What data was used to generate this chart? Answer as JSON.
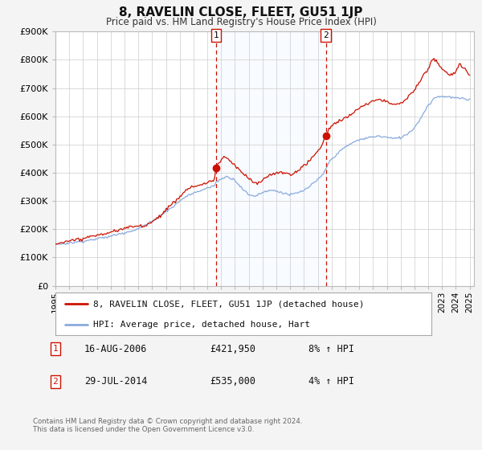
{
  "title": "8, RAVELIN CLOSE, FLEET, GU51 1JP",
  "subtitle": "Price paid vs. HM Land Registry's House Price Index (HPI)",
  "ylim": [
    0,
    900000
  ],
  "ytick_values": [
    0,
    100000,
    200000,
    300000,
    400000,
    500000,
    600000,
    700000,
    800000,
    900000
  ],
  "ytick_labels": [
    "£0",
    "£100K",
    "£200K",
    "£300K",
    "£400K",
    "£500K",
    "£600K",
    "£700K",
    "£800K",
    "£900K"
  ],
  "xlim_start": 1995.0,
  "xlim_end": 2025.3,
  "xtick_years": [
    1995,
    1996,
    1997,
    1998,
    1999,
    2000,
    2001,
    2002,
    2003,
    2004,
    2005,
    2006,
    2007,
    2008,
    2009,
    2010,
    2011,
    2012,
    2013,
    2014,
    2015,
    2016,
    2017,
    2018,
    2019,
    2020,
    2021,
    2022,
    2023,
    2024,
    2025
  ],
  "hpi_color": "#88aadd",
  "price_color": "#cc1100",
  "marker_color": "#cc1100",
  "vline_color": "#cc1100",
  "shade_color": "#ddeeff",
  "event1_x": 2006.625,
  "event2_x": 2014.58,
  "legend_label_price": "8, RAVELIN CLOSE, FLEET, GU51 1JP (detached house)",
  "legend_label_hpi": "HPI: Average price, detached house, Hart",
  "note1_label": "1",
  "note1_date": "16-AUG-2006",
  "note1_price": "£421,950",
  "note1_hpi": "8% ↑ HPI",
  "note2_label": "2",
  "note2_date": "29-JUL-2014",
  "note2_price": "£535,000",
  "note2_hpi": "4% ↑ HPI",
  "footer": "Contains HM Land Registry data © Crown copyright and database right 2024.\nThis data is licensed under the Open Government Licence v3.0.",
  "background_color": "#f4f4f4",
  "plot_bg_color": "#ffffff",
  "grid_color": "#cccccc",
  "hpi_anchors": [
    [
      1995.0,
      147000
    ],
    [
      1995.5,
      149000
    ],
    [
      1996.0,
      152000
    ],
    [
      1996.5,
      155000
    ],
    [
      1997.0,
      158000
    ],
    [
      1997.5,
      163000
    ],
    [
      1998.0,
      168000
    ],
    [
      1998.5,
      172000
    ],
    [
      1999.0,
      177000
    ],
    [
      1999.5,
      183000
    ],
    [
      2000.0,
      189000
    ],
    [
      2000.5,
      196000
    ],
    [
      2001.0,
      204000
    ],
    [
      2001.5,
      215000
    ],
    [
      2002.0,
      228000
    ],
    [
      2002.5,
      245000
    ],
    [
      2003.0,
      262000
    ],
    [
      2003.5,
      278000
    ],
    [
      2004.0,
      298000
    ],
    [
      2004.5,
      315000
    ],
    [
      2005.0,
      325000
    ],
    [
      2005.5,
      333000
    ],
    [
      2006.0,
      342000
    ],
    [
      2006.5,
      352000
    ],
    [
      2006.625,
      365000
    ],
    [
      2007.0,
      378000
    ],
    [
      2007.5,
      388000
    ],
    [
      2008.0,
      375000
    ],
    [
      2008.5,
      345000
    ],
    [
      2009.0,
      320000
    ],
    [
      2009.5,
      318000
    ],
    [
      2010.0,
      330000
    ],
    [
      2010.5,
      338000
    ],
    [
      2011.0,
      335000
    ],
    [
      2011.5,
      328000
    ],
    [
      2012.0,
      322000
    ],
    [
      2012.5,
      328000
    ],
    [
      2013.0,
      338000
    ],
    [
      2013.5,
      355000
    ],
    [
      2014.0,
      375000
    ],
    [
      2014.4,
      395000
    ],
    [
      2014.58,
      415000
    ],
    [
      2015.0,
      448000
    ],
    [
      2015.5,
      470000
    ],
    [
      2016.0,
      490000
    ],
    [
      2016.5,
      505000
    ],
    [
      2017.0,
      515000
    ],
    [
      2017.5,
      520000
    ],
    [
      2018.0,
      525000
    ],
    [
      2018.5,
      528000
    ],
    [
      2019.0,
      525000
    ],
    [
      2019.5,
      520000
    ],
    [
      2020.0,
      522000
    ],
    [
      2020.5,
      535000
    ],
    [
      2021.0,
      558000
    ],
    [
      2021.5,
      595000
    ],
    [
      2022.0,
      638000
    ],
    [
      2022.5,
      665000
    ],
    [
      2023.0,
      670000
    ],
    [
      2023.5,
      668000
    ],
    [
      2024.0,
      665000
    ],
    [
      2024.5,
      660000
    ],
    [
      2025.0,
      658000
    ]
  ],
  "price_anchors": [
    [
      1995.0,
      152000
    ],
    [
      1995.5,
      155000
    ],
    [
      1996.0,
      159000
    ],
    [
      1996.5,
      164000
    ],
    [
      1997.0,
      170000
    ],
    [
      1997.5,
      176000
    ],
    [
      1998.0,
      181000
    ],
    [
      1998.5,
      186000
    ],
    [
      1999.0,
      192000
    ],
    [
      1999.5,
      198000
    ],
    [
      2000.0,
      205000
    ],
    [
      2000.5,
      213000
    ],
    [
      2001.0,
      215000
    ],
    [
      2001.5,
      218000
    ],
    [
      2002.0,
      230000
    ],
    [
      2002.5,
      250000
    ],
    [
      2003.0,
      273000
    ],
    [
      2003.5,
      295000
    ],
    [
      2004.0,
      320000
    ],
    [
      2004.5,
      348000
    ],
    [
      2005.0,
      358000
    ],
    [
      2005.5,
      362000
    ],
    [
      2006.0,
      368000
    ],
    [
      2006.5,
      380000
    ],
    [
      2006.625,
      421950
    ],
    [
      2006.8,
      435000
    ],
    [
      2007.0,
      448000
    ],
    [
      2007.2,
      460000
    ],
    [
      2007.4,
      455000
    ],
    [
      2007.6,
      448000
    ],
    [
      2008.0,
      430000
    ],
    [
      2008.5,
      405000
    ],
    [
      2009.0,
      385000
    ],
    [
      2009.3,
      372000
    ],
    [
      2009.6,
      368000
    ],
    [
      2010.0,
      378000
    ],
    [
      2010.3,
      390000
    ],
    [
      2010.6,
      400000
    ],
    [
      2011.0,
      405000
    ],
    [
      2011.3,
      408000
    ],
    [
      2011.6,
      402000
    ],
    [
      2012.0,
      398000
    ],
    [
      2012.3,
      405000
    ],
    [
      2012.6,
      415000
    ],
    [
      2013.0,
      428000
    ],
    [
      2013.3,
      442000
    ],
    [
      2013.6,
      458000
    ],
    [
      2014.0,
      478000
    ],
    [
      2014.3,
      498000
    ],
    [
      2014.58,
      535000
    ],
    [
      2014.8,
      555000
    ],
    [
      2015.0,
      568000
    ],
    [
      2015.3,
      578000
    ],
    [
      2015.6,
      585000
    ],
    [
      2016.0,
      592000
    ],
    [
      2016.3,
      602000
    ],
    [
      2016.6,
      615000
    ],
    [
      2017.0,
      625000
    ],
    [
      2017.3,
      635000
    ],
    [
      2017.6,
      642000
    ],
    [
      2018.0,
      650000
    ],
    [
      2018.3,
      658000
    ],
    [
      2018.6,
      655000
    ],
    [
      2019.0,
      648000
    ],
    [
      2019.3,
      642000
    ],
    [
      2019.6,
      640000
    ],
    [
      2020.0,
      645000
    ],
    [
      2020.3,
      655000
    ],
    [
      2020.6,
      670000
    ],
    [
      2021.0,
      688000
    ],
    [
      2021.3,
      710000
    ],
    [
      2021.6,
      738000
    ],
    [
      2022.0,
      762000
    ],
    [
      2022.2,
      785000
    ],
    [
      2022.4,
      800000
    ],
    [
      2022.6,
      790000
    ],
    [
      2022.8,
      778000
    ],
    [
      2023.0,
      768000
    ],
    [
      2023.2,
      758000
    ],
    [
      2023.4,
      748000
    ],
    [
      2023.6,
      742000
    ],
    [
      2023.8,
      748000
    ],
    [
      2024.0,
      760000
    ],
    [
      2024.2,
      775000
    ],
    [
      2024.4,
      778000
    ],
    [
      2024.6,
      768000
    ],
    [
      2024.8,
      755000
    ],
    [
      2025.0,
      748000
    ]
  ]
}
